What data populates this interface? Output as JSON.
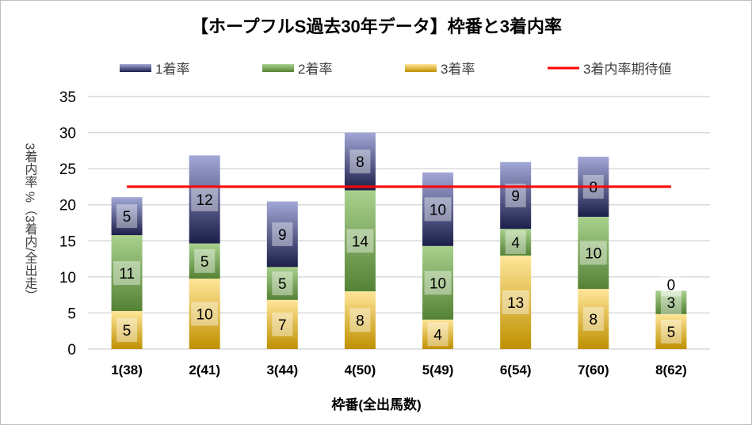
{
  "chart_data": {
    "type": "bar",
    "stacked": true,
    "title": "【ホープフルS過去30年データ】枠番と3着内率",
    "xlabel": "枠番(全出馬数)",
    "ylabel": "3着内率 %（3着内/全出走）",
    "ylim": [
      0,
      35
    ],
    "yticks": [
      0,
      5,
      10,
      15,
      20,
      25,
      30,
      35
    ],
    "grid": true,
    "legend_position": "top",
    "categories": [
      "1(38)",
      "2(41)",
      "3(44)",
      "4(50)",
      "5(49)",
      "6(54)",
      "7(60)",
      "8(62)"
    ],
    "series": [
      {
        "name": "3着率",
        "values": [
          5.26,
          9.76,
          6.82,
          8.0,
          4.08,
          12.96,
          8.33,
          4.84
        ],
        "labels": [
          "5",
          "10",
          "7",
          "8",
          "4",
          "13",
          "8",
          "5"
        ],
        "colors": [
          "#ffe699",
          "#bf9000"
        ]
      },
      {
        "name": "2着率",
        "values": [
          10.53,
          4.88,
          4.55,
          14.0,
          10.2,
          3.7,
          10.0,
          3.23
        ],
        "labels": [
          "11",
          "5",
          "5",
          "14",
          "10",
          "4",
          "10",
          "3"
        ],
        "colors": [
          "#a9d18e",
          "#548235"
        ]
      },
      {
        "name": "1着率",
        "values": [
          5.26,
          12.2,
          9.09,
          8.0,
          10.2,
          9.26,
          8.33,
          0
        ],
        "labels": [
          "5",
          "12",
          "9",
          "8",
          "10",
          "9",
          "8",
          "0"
        ],
        "colors": [
          "#a2a8d6",
          "#1c1f4a"
        ]
      }
    ],
    "reference_line": {
      "name": "3着内率期待値",
      "value": 22.5,
      "color": "#ff0000"
    }
  }
}
